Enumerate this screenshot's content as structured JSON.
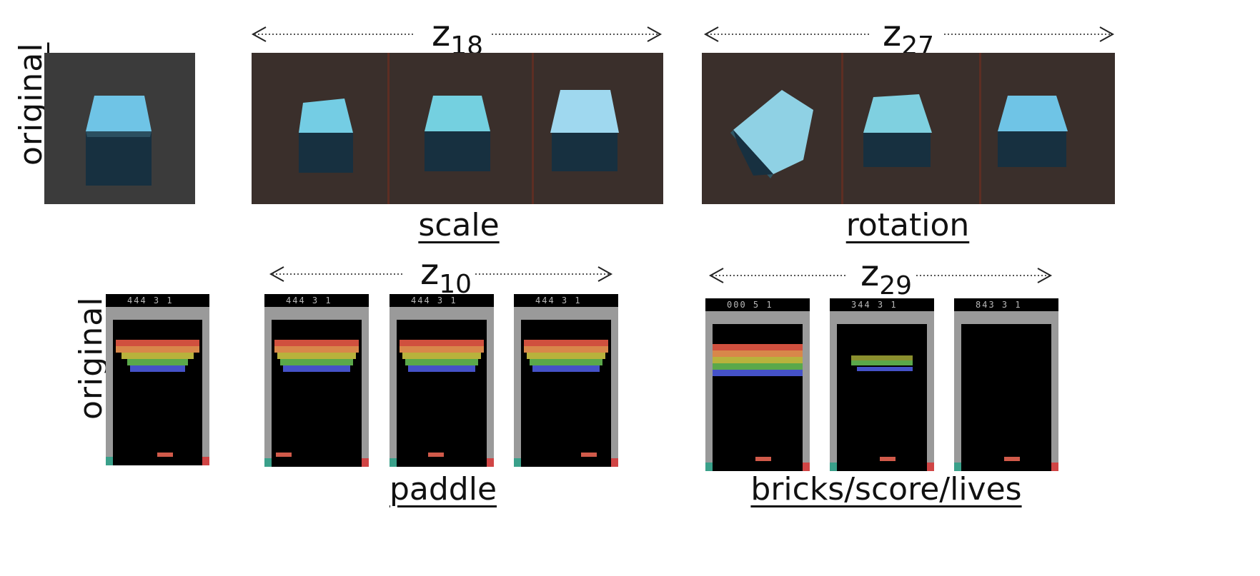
{
  "labels": {
    "original_top": "original",
    "original_bottom": "original"
  },
  "latent_dims": {
    "z18": {
      "base": "z",
      "sub": "18"
    },
    "z27": {
      "base": "z",
      "sub": "27"
    },
    "z10": {
      "base": "z",
      "sub": "10"
    },
    "z29": {
      "base": "z",
      "sub": "29"
    }
  },
  "captions": {
    "scale": "scale",
    "rotation": "rotation",
    "paddle": "paddle",
    "bricks": "bricks/score/lives"
  },
  "atari_hud": {
    "original": "444  3  1",
    "p1": "444  3  1",
    "p2": "444  3  1",
    "p3": "444  3  1",
    "b1": "000  5  1",
    "b2": "344  3  1",
    "b3": "843  3  1"
  },
  "colors": {
    "cube_top": "#6fc4e6",
    "cube_side": "#1d3a4a",
    "cube_bg_original": "#3b3b3b",
    "cube_bg_traversal": "#3a2f2b",
    "brick_red": "#d0503e",
    "brick_orange": "#d8874a",
    "brick_yellow": "#b8b23c",
    "brick_green": "#5aa84a",
    "brick_blue": "#4552c8"
  }
}
